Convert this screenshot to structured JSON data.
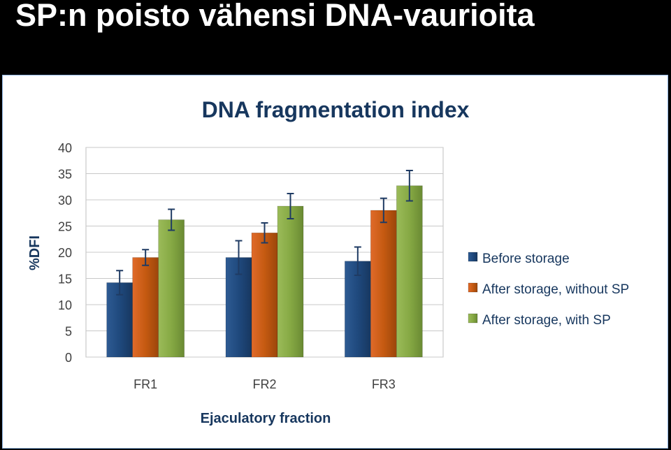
{
  "slide": {
    "title": "SP:n poisto vähensi DNA-vaurioita"
  },
  "chart_data": {
    "type": "bar",
    "title": "DNA fragmentation index",
    "xlabel": "Ejaculatory fraction",
    "ylabel": "%DFI",
    "categories": [
      "FR1",
      "FR2",
      "FR3"
    ],
    "ylim": [
      0,
      40
    ],
    "yticks": [
      0,
      5,
      10,
      15,
      20,
      25,
      30,
      35,
      40
    ],
    "grid": true,
    "legend_position": "right",
    "error_bars": true,
    "series": [
      {
        "name": "Before storage",
        "color": "#1f497d",
        "values": [
          14.2,
          19.0,
          18.3
        ],
        "errors": [
          2.3,
          3.2,
          2.7
        ]
      },
      {
        "name": "After storage, without SP",
        "color": "#c0504d",
        "values": [
          19.0,
          23.7,
          28.0
        ],
        "errors": [
          1.5,
          1.9,
          2.3
        ]
      },
      {
        "name": "After storage, with SP",
        "color": "#77933c",
        "values": [
          26.2,
          28.8,
          32.7
        ],
        "errors": [
          2.0,
          2.4,
          2.9
        ]
      }
    ]
  }
}
